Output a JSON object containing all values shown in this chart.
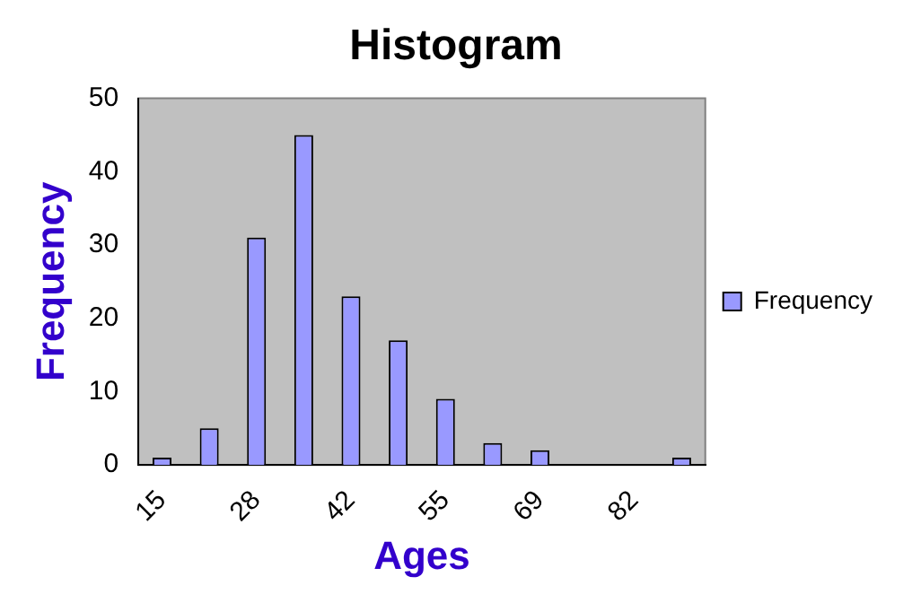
{
  "chart_data": {
    "type": "bar",
    "title": "Histogram",
    "xlabel": "Ages",
    "ylabel": "Frequency",
    "categories": [
      "15",
      null,
      "28",
      null,
      "42",
      null,
      "55",
      null,
      "69",
      null,
      "82",
      null
    ],
    "series": [
      {
        "name": "Frequency",
        "color": "#9999ff",
        "values": [
          1,
          5,
          31,
          45,
          23,
          17,
          9,
          3,
          2,
          0,
          0,
          1
        ]
      }
    ],
    "ylim": [
      0,
      50
    ],
    "yticks": [
      0,
      10,
      20,
      30,
      40,
      50
    ],
    "grid": false,
    "legend": "right"
  }
}
